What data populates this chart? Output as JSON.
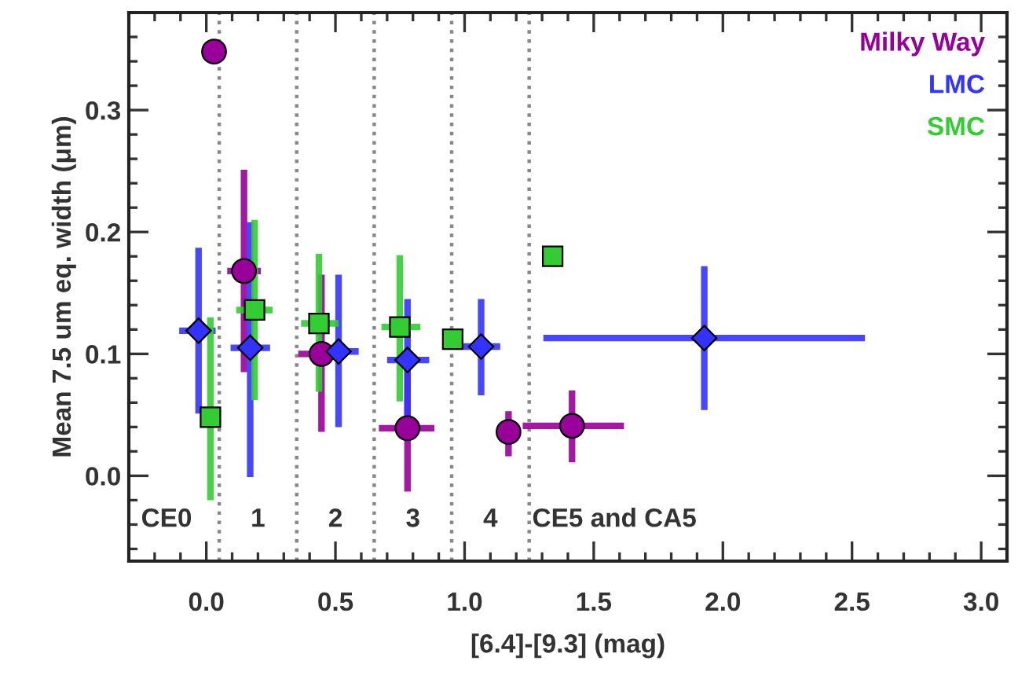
{
  "chart_data": {
    "type": "scatter",
    "xlabel": "[6.4]-[9.3] (mag)",
    "ylabel": "Mean 7.5 um eq. width (μm)",
    "xlim": [
      -0.3,
      3.1
    ],
    "xticks": [
      {
        "value": 0,
        "label": "0.0"
      },
      0.5,
      {
        "value": 1,
        "label": "1.0"
      },
      1.5,
      {
        "value": 2,
        "label": "2.0"
      },
      2.5,
      {
        "value": 3,
        "label": "3.0"
      }
    ],
    "ylim": [
      -0.07,
      0.38
    ],
    "yticks": [
      {
        "value": 0,
        "label": "0.0"
      },
      0.1,
      0.2,
      0.3
    ],
    "legend": "top right",
    "grid": false,
    "series": [
      {
        "name": "Milky Way",
        "color": "#990099",
        "marker": "circle",
        "x": [
          0.03,
          0.146,
          0.446,
          0.779,
          1.17,
          1.416
        ],
        "values": [
          0.348,
          0.168,
          0.1,
          0.039,
          0.036,
          0.041
        ],
        "xerrors": [
          null,
          0.065,
          0.09,
          [
            0.668,
            0.883
          ],
          null,
          [
            1.225,
            1.617
          ]
        ],
        "errors": [
          null,
          [
            0.085,
            0.251
          ],
          [
            0.036,
            0.165
          ],
          0.052,
          [
            0.016,
            0.053
          ],
          [
            0.011,
            0.07
          ]
        ]
      },
      {
        "name": "LMC",
        "color": "#3333ff",
        "marker": "diamond",
        "x": [
          -0.03,
          0.17,
          0.512,
          0.779,
          1.064,
          1.928
        ],
        "values": [
          0.119,
          0.105,
          0.102,
          0.095,
          0.106,
          0.113
        ],
        "xerrors": [
          [
            -0.105,
            0.036
          ],
          [
            0.094,
            0.247
          ],
          [
            0.45,
            0.59
          ],
          [
            0.7,
            0.863
          ],
          [
            0.994,
            1.138
          ],
          [
            1.305,
            2.55
          ]
        ],
        "errors": [
          [
            0.051,
            0.187
          ],
          [
            -0.001,
            0.208
          ],
          [
            0.04,
            0.165
          ],
          0.05,
          [
            0.066,
            0.145
          ],
          [
            0.054,
            0.172
          ]
        ]
      },
      {
        "name": "SMC",
        "color": "#33cc33",
        "marker": "square",
        "x": [
          0.016,
          0.187,
          0.436,
          0.749,
          0.954,
          1.341
        ],
        "values": [
          0.048,
          0.136,
          0.125,
          0.122,
          0.112,
          0.18
        ],
        "xerrors": [
          null,
          [
            0.116,
            0.257
          ],
          [
            0.367,
            0.512
          ],
          [
            0.678,
            0.829
          ],
          null,
          null
        ],
        "errors": [
          [
            -0.02,
            0.13
          ],
          [
            0.062,
            0.21
          ],
          [
            0.069,
            0.182
          ],
          [
            0.061,
            0.181
          ],
          null,
          null
        ]
      }
    ],
    "ref_lines": [
      {
        "axis": "x",
        "value": 0.05,
        "label": null,
        "color": "#888888",
        "line_style": "dotted"
      },
      {
        "axis": "x",
        "value": 0.35,
        "label": null,
        "color": "#888888",
        "line_style": "dotted"
      },
      {
        "axis": "x",
        "value": 0.65,
        "label": null,
        "color": "#888888",
        "line_style": "dotted"
      },
      {
        "axis": "x",
        "value": 0.95,
        "label": null,
        "color": "#888888",
        "line_style": "dotted"
      },
      {
        "axis": "x",
        "value": 1.25,
        "label": null,
        "color": "#888888",
        "line_style": "dotted"
      }
    ],
    "annotations": [
      "CE0",
      "1",
      "2",
      "3",
      "4",
      "CE5 and CA5"
    ]
  }
}
